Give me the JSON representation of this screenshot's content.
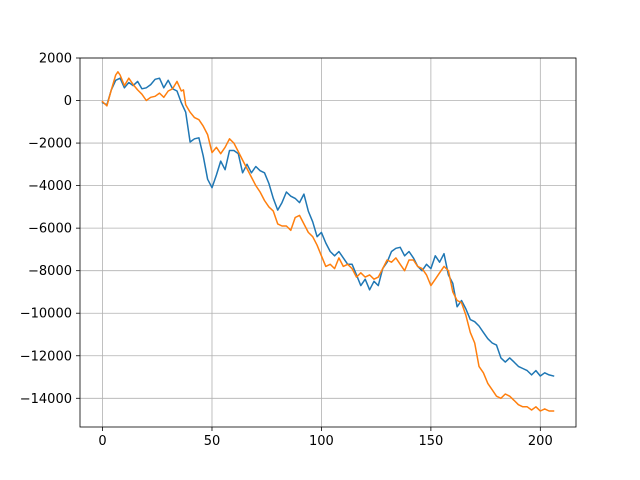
{
  "chart_data": {
    "type": "line",
    "title": "",
    "xlabel": "",
    "ylabel": "",
    "xlim": [
      -10.3,
      216.3
    ],
    "ylim": [
      -15350,
      2000
    ],
    "x_ticks": [
      0,
      50,
      100,
      150,
      200
    ],
    "x_tick_labels": [
      "0",
      "50",
      "100",
      "150",
      "200"
    ],
    "y_ticks": [
      2000,
      0,
      -2000,
      -4000,
      -6000,
      -8000,
      -10000,
      -12000,
      -14000
    ],
    "y_tick_labels": [
      "2000",
      "0",
      "−2000",
      "−4000",
      "−6000",
      "−8000",
      "−10000",
      "−12000",
      "−14000"
    ],
    "grid": true,
    "legend": "none",
    "series": [
      {
        "color": "#1f77b4",
        "points": [
          [
            0,
            -100
          ],
          [
            2,
            -200
          ],
          [
            4,
            500
          ],
          [
            6,
            950
          ],
          [
            8,
            1050
          ],
          [
            10,
            600
          ],
          [
            12,
            850
          ],
          [
            14,
            700
          ],
          [
            16,
            900
          ],
          [
            18,
            550
          ],
          [
            20,
            600
          ],
          [
            22,
            750
          ],
          [
            24,
            1000
          ],
          [
            26,
            1050
          ],
          [
            28,
            600
          ],
          [
            30,
            950
          ],
          [
            32,
            550
          ],
          [
            34,
            450
          ],
          [
            36,
            -100
          ],
          [
            38,
            -550
          ],
          [
            40,
            -1950
          ],
          [
            42,
            -1800
          ],
          [
            44,
            -1750
          ],
          [
            46,
            -2600
          ],
          [
            48,
            -3700
          ],
          [
            50,
            -4100
          ],
          [
            52,
            -3500
          ],
          [
            54,
            -2850
          ],
          [
            56,
            -3250
          ],
          [
            58,
            -2350
          ],
          [
            60,
            -2350
          ],
          [
            62,
            -2500
          ],
          [
            64,
            -3400
          ],
          [
            66,
            -3000
          ],
          [
            68,
            -3400
          ],
          [
            70,
            -3100
          ],
          [
            72,
            -3300
          ],
          [
            74,
            -3400
          ],
          [
            76,
            -3900
          ],
          [
            78,
            -4600
          ],
          [
            80,
            -5150
          ],
          [
            82,
            -4800
          ],
          [
            84,
            -4300
          ],
          [
            86,
            -4500
          ],
          [
            88,
            -4600
          ],
          [
            90,
            -4800
          ],
          [
            92,
            -4400
          ],
          [
            94,
            -5200
          ],
          [
            96,
            -5700
          ],
          [
            98,
            -6400
          ],
          [
            100,
            -6200
          ],
          [
            102,
            -6700
          ],
          [
            104,
            -7100
          ],
          [
            106,
            -7300
          ],
          [
            108,
            -7100
          ],
          [
            110,
            -7400
          ],
          [
            112,
            -7700
          ],
          [
            114,
            -7700
          ],
          [
            116,
            -8200
          ],
          [
            118,
            -8700
          ],
          [
            120,
            -8400
          ],
          [
            122,
            -8900
          ],
          [
            124,
            -8500
          ],
          [
            126,
            -8700
          ],
          [
            128,
            -7900
          ],
          [
            130,
            -7600
          ],
          [
            132,
            -7100
          ],
          [
            134,
            -6950
          ],
          [
            136,
            -6900
          ],
          [
            138,
            -7300
          ],
          [
            140,
            -7100
          ],
          [
            142,
            -7400
          ],
          [
            144,
            -7800
          ],
          [
            146,
            -8000
          ],
          [
            148,
            -7700
          ],
          [
            150,
            -7900
          ],
          [
            152,
            -7300
          ],
          [
            154,
            -7600
          ],
          [
            156,
            -7200
          ],
          [
            158,
            -8200
          ],
          [
            160,
            -8600
          ],
          [
            162,
            -9700
          ],
          [
            164,
            -9400
          ],
          [
            166,
            -9800
          ],
          [
            168,
            -10300
          ],
          [
            170,
            -10400
          ],
          [
            172,
            -10600
          ],
          [
            174,
            -10900
          ],
          [
            176,
            -11200
          ],
          [
            178,
            -11400
          ],
          [
            180,
            -11500
          ],
          [
            182,
            -12100
          ],
          [
            184,
            -12300
          ],
          [
            186,
            -12100
          ],
          [
            188,
            -12300
          ],
          [
            190,
            -12500
          ],
          [
            192,
            -12600
          ],
          [
            194,
            -12700
          ],
          [
            196,
            -12900
          ],
          [
            198,
            -12700
          ],
          [
            200,
            -12950
          ],
          [
            202,
            -12800
          ],
          [
            204,
            -12900
          ],
          [
            206,
            -12950
          ]
        ]
      },
      {
        "color": "#ff7f0e",
        "points": [
          [
            0,
            -50
          ],
          [
            2,
            -250
          ],
          [
            4,
            500
          ],
          [
            6,
            1200
          ],
          [
            7,
            1350
          ],
          [
            8,
            1200
          ],
          [
            10,
            700
          ],
          [
            12,
            1050
          ],
          [
            14,
            750
          ],
          [
            16,
            500
          ],
          [
            18,
            300
          ],
          [
            20,
            0
          ],
          [
            22,
            150
          ],
          [
            24,
            200
          ],
          [
            26,
            350
          ],
          [
            28,
            150
          ],
          [
            30,
            450
          ],
          [
            32,
            550
          ],
          [
            34,
            900
          ],
          [
            36,
            450
          ],
          [
            37,
            500
          ],
          [
            38,
            -200
          ],
          [
            40,
            -550
          ],
          [
            42,
            -800
          ],
          [
            44,
            -900
          ],
          [
            46,
            -1200
          ],
          [
            48,
            -1600
          ],
          [
            50,
            -2450
          ],
          [
            52,
            -2200
          ],
          [
            54,
            -2500
          ],
          [
            56,
            -2200
          ],
          [
            58,
            -1800
          ],
          [
            60,
            -2000
          ],
          [
            62,
            -2400
          ],
          [
            64,
            -2800
          ],
          [
            66,
            -3200
          ],
          [
            68,
            -3600
          ],
          [
            70,
            -4000
          ],
          [
            72,
            -4300
          ],
          [
            74,
            -4700
          ],
          [
            76,
            -5000
          ],
          [
            78,
            -5200
          ],
          [
            80,
            -5800
          ],
          [
            82,
            -5900
          ],
          [
            84,
            -5900
          ],
          [
            86,
            -6100
          ],
          [
            88,
            -5500
          ],
          [
            90,
            -5400
          ],
          [
            92,
            -5800
          ],
          [
            94,
            -6200
          ],
          [
            96,
            -6400
          ],
          [
            98,
            -6800
          ],
          [
            100,
            -7300
          ],
          [
            102,
            -7800
          ],
          [
            104,
            -7700
          ],
          [
            106,
            -7900
          ],
          [
            108,
            -7400
          ],
          [
            110,
            -7800
          ],
          [
            112,
            -7700
          ],
          [
            114,
            -7900
          ],
          [
            116,
            -8300
          ],
          [
            118,
            -8100
          ],
          [
            120,
            -8300
          ],
          [
            122,
            -8200
          ],
          [
            124,
            -8400
          ],
          [
            126,
            -8300
          ],
          [
            128,
            -7900
          ],
          [
            130,
            -7500
          ],
          [
            132,
            -7600
          ],
          [
            134,
            -7400
          ],
          [
            136,
            -7700
          ],
          [
            138,
            -8000
          ],
          [
            140,
            -7500
          ],
          [
            142,
            -7500
          ],
          [
            144,
            -7800
          ],
          [
            146,
            -7900
          ],
          [
            148,
            -8200
          ],
          [
            150,
            -8700
          ],
          [
            152,
            -8400
          ],
          [
            154,
            -8100
          ],
          [
            156,
            -7800
          ],
          [
            158,
            -8000
          ],
          [
            160,
            -9000
          ],
          [
            162,
            -9400
          ],
          [
            164,
            -9500
          ],
          [
            166,
            -10100
          ],
          [
            168,
            -10900
          ],
          [
            170,
            -11400
          ],
          [
            172,
            -12500
          ],
          [
            174,
            -12800
          ],
          [
            176,
            -13300
          ],
          [
            178,
            -13600
          ],
          [
            180,
            -13900
          ],
          [
            182,
            -14000
          ],
          [
            184,
            -13800
          ],
          [
            186,
            -13900
          ],
          [
            188,
            -14100
          ],
          [
            190,
            -14300
          ],
          [
            192,
            -14400
          ],
          [
            194,
            -14400
          ],
          [
            196,
            -14550
          ],
          [
            198,
            -14400
          ],
          [
            200,
            -14600
          ],
          [
            202,
            -14500
          ],
          [
            204,
            -14600
          ],
          [
            206,
            -14600
          ]
        ]
      }
    ]
  }
}
